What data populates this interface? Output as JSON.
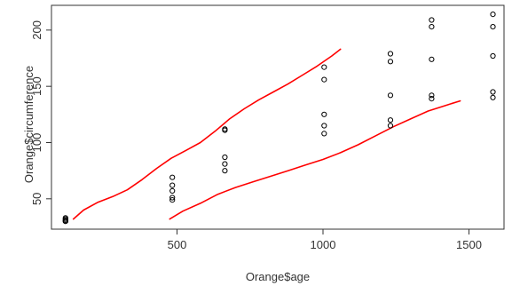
{
  "chart_data": {
    "type": "scatter",
    "title": "",
    "xlabel": "Orange$age",
    "ylabel": "Orange$circumference",
    "xlim": [
      70,
      1620
    ],
    "ylim": [
      23,
      222
    ],
    "xticks": [
      500,
      1000,
      1500
    ],
    "yticks": [
      50,
      100,
      150,
      200
    ],
    "grid": false,
    "point_color": "#000000",
    "curve_color": "#ff0000",
    "points": [
      {
        "x": 118,
        "y": 30
      },
      {
        "x": 118,
        "y": 31
      },
      {
        "x": 118,
        "y": 32
      },
      {
        "x": 118,
        "y": 33
      },
      {
        "x": 118,
        "y": 30
      },
      {
        "x": 484,
        "y": 49
      },
      {
        "x": 484,
        "y": 51
      },
      {
        "x": 484,
        "y": 57
      },
      {
        "x": 484,
        "y": 62
      },
      {
        "x": 484,
        "y": 69
      },
      {
        "x": 664,
        "y": 75
      },
      {
        "x": 664,
        "y": 81
      },
      {
        "x": 664,
        "y": 87
      },
      {
        "x": 664,
        "y": 111
      },
      {
        "x": 664,
        "y": 112
      },
      {
        "x": 1004,
        "y": 108
      },
      {
        "x": 1004,
        "y": 115
      },
      {
        "x": 1004,
        "y": 125
      },
      {
        "x": 1004,
        "y": 156
      },
      {
        "x": 1004,
        "y": 167
      },
      {
        "x": 1231,
        "y": 115
      },
      {
        "x": 1231,
        "y": 120
      },
      {
        "x": 1231,
        "y": 142
      },
      {
        "x": 1231,
        "y": 172
      },
      {
        "x": 1231,
        "y": 179
      },
      {
        "x": 1372,
        "y": 139
      },
      {
        "x": 1372,
        "y": 142
      },
      {
        "x": 1372,
        "y": 174
      },
      {
        "x": 1372,
        "y": 203
      },
      {
        "x": 1372,
        "y": 209
      },
      {
        "x": 1582,
        "y": 140
      },
      {
        "x": 1582,
        "y": 145
      },
      {
        "x": 1582,
        "y": 177
      },
      {
        "x": 1582,
        "y": 203
      },
      {
        "x": 1582,
        "y": 214
      }
    ],
    "series": [
      {
        "x": [
          145,
          180,
          230,
          280,
          330,
          380,
          430,
          480,
          530,
          580,
          630,
          680,
          730,
          780,
          830,
          880,
          930,
          980,
          1030,
          1060
        ],
        "y": [
          32,
          40,
          47,
          52,
          58,
          67,
          77,
          86,
          93,
          100,
          110,
          121,
          130,
          138,
          145,
          152,
          160,
          168,
          177,
          183
        ]
      },
      {
        "x": [
          475,
          520,
          580,
          640,
          700,
          760,
          820,
          880,
          940,
          1000,
          1060,
          1120,
          1180,
          1240,
          1300,
          1360,
          1420,
          1470
        ],
        "y": [
          32,
          39,
          46,
          54,
          60,
          65,
          70,
          75,
          80,
          85,
          91,
          98,
          106,
          114,
          121,
          128,
          133,
          137
        ]
      }
    ]
  }
}
